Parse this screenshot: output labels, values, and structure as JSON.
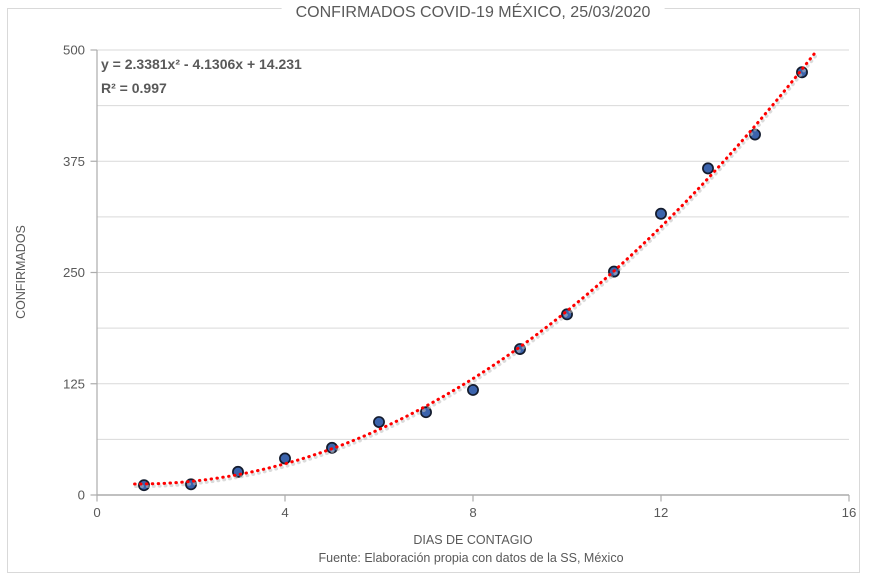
{
  "title": "CONFIRMADOS COVID-19 MÉXICO, 25/03/2020",
  "equation": {
    "line1": "y = 2.3381x² - 4.1306x + 14.231",
    "line2": "R² = 0.997"
  },
  "footer": "Fuente: Elaboración propia con datos de la SS, México",
  "chart_data": {
    "type": "scatter",
    "title": "CONFIRMADOS COVID-19 MÉXICO, 25/03/2020",
    "xlabel": "DIAS DE CONTAGIO",
    "ylabel": "CONFIRMADOS",
    "x": [
      1,
      2,
      3,
      4,
      5,
      6,
      7,
      8,
      9,
      10,
      11,
      12,
      13,
      14,
      15
    ],
    "y": [
      11,
      12,
      26,
      41,
      53,
      82,
      93,
      118,
      164,
      203,
      251,
      316,
      367,
      405,
      475
    ],
    "xlim": [
      0,
      16
    ],
    "ylim": [
      0,
      500
    ],
    "x_ticks": [
      0,
      4,
      8,
      12,
      16
    ],
    "y_ticks": [
      0,
      125,
      250,
      375,
      500
    ],
    "y_minor_gridlines": [
      62.5,
      187.5,
      312.5,
      437.5
    ],
    "grid": true,
    "legend": false,
    "trendline": {
      "type": "polynomial",
      "degree": 2,
      "a": 2.3381,
      "b": -4.1306,
      "c": 14.231,
      "label": "y = 2.3381x² - 4.1306x + 14.231",
      "r_squared_label": "R² = 0.997",
      "r_squared": 0.997,
      "x_start": 0.8,
      "x_end": 15.28,
      "style": "dotted"
    },
    "colors": {
      "marker_fill": "#3B63AC",
      "marker_stroke": "#141C2E",
      "trend": "#FF0000",
      "trend_shadow": "#BDBDBD",
      "gridline": "#D9D9D9",
      "axis": "#ACACAC",
      "text": "#595959"
    }
  }
}
